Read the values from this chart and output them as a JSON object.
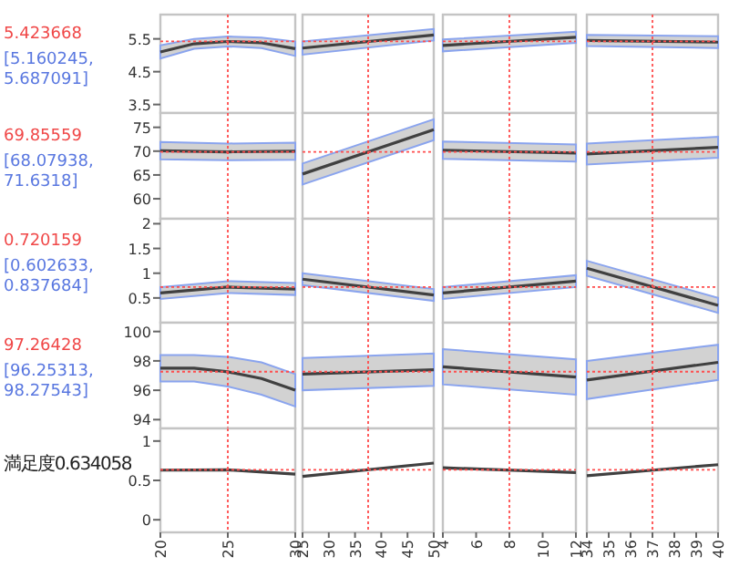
{
  "chart_data": [
    {
      "type": "line",
      "xlim": [
        20,
        30
      ],
      "ylim": [
        3.24,
        6.24
      ],
      "yticks": [
        3.5,
        4.5,
        5.5
      ],
      "tick_labels": "y",
      "annotations": [
        "5.423668",
        "[5.160245, 5.687091]"
      ],
      "ref_lines": [
        {
          "axis": "x",
          "value": 25,
          "color": "#ff4d4d",
          "line_style": "dotted"
        },
        {
          "axis": "y",
          "value": 5.423668,
          "color": "#ff4d4d",
          "line_style": "dotted"
        }
      ],
      "series": [
        {
          "color": "#404040",
          "x": [
            20,
            22.5,
            25,
            27.5,
            30
          ],
          "values": [
            5.1,
            5.35,
            5.42,
            5.38,
            5.2
          ],
          "lower": [
            4.9,
            5.2,
            5.27,
            5.22,
            4.98
          ],
          "upper": [
            5.3,
            5.5,
            5.57,
            5.54,
            5.42
          ]
        }
      ]
    },
    {
      "type": "line",
      "xlim": [
        25,
        50
      ],
      "ylim": [
        3.24,
        6.24
      ],
      "tick_labels": false,
      "ref_lines": [
        {
          "axis": "x",
          "value": 37.5,
          "color": "#ff4d4d",
          "line_style": "dotted"
        },
        {
          "axis": "y",
          "value": 5.423668,
          "color": "#ff4d4d",
          "line_style": "dotted"
        }
      ],
      "series": [
        {
          "color": "#404040",
          "x": [
            25,
            50
          ],
          "values": [
            5.22,
            5.62
          ],
          "lower": [
            5.02,
            5.45
          ],
          "upper": [
            5.42,
            5.8
          ]
        }
      ]
    },
    {
      "type": "line",
      "xlim": [
        4,
        12
      ],
      "ylim": [
        3.24,
        6.24
      ],
      "tick_labels": false,
      "ref_lines": [
        {
          "axis": "x",
          "value": 8,
          "color": "#ff4d4d",
          "line_style": "dotted"
        },
        {
          "axis": "y",
          "value": 5.423668,
          "color": "#ff4d4d",
          "line_style": "dotted"
        }
      ],
      "series": [
        {
          "color": "#404040",
          "x": [
            4,
            12
          ],
          "values": [
            5.3,
            5.55
          ],
          "lower": [
            5.12,
            5.38
          ],
          "upper": [
            5.48,
            5.72
          ]
        }
      ]
    },
    {
      "type": "line",
      "xlim": [
        34,
        40
      ],
      "ylim": [
        3.24,
        6.24
      ],
      "tick_labels": false,
      "ref_lines": [
        {
          "axis": "x",
          "value": 37,
          "color": "#ff4d4d",
          "line_style": "dotted"
        },
        {
          "axis": "y",
          "value": 5.423668,
          "color": "#ff4d4d",
          "line_style": "dotted"
        }
      ],
      "series": [
        {
          "color": "#404040",
          "x": [
            34,
            40
          ],
          "values": [
            5.45,
            5.4
          ],
          "lower": [
            5.28,
            5.22
          ],
          "upper": [
            5.62,
            5.58
          ]
        }
      ]
    },
    {
      "type": "line",
      "xlim": [
        20,
        30
      ],
      "ylim": [
        55.8,
        78
      ],
      "yticks": [
        60,
        65,
        70,
        75
      ],
      "tick_labels": "y",
      "annotations": [
        "69.85559",
        "[68.07938, 71.6318]"
      ],
      "ref_lines": [
        {
          "axis": "x",
          "value": 25,
          "color": "#ff4d4d",
          "line_style": "dotted"
        },
        {
          "axis": "y",
          "value": 69.85559,
          "color": "#ff4d4d",
          "line_style": "dotted"
        }
      ],
      "series": [
        {
          "color": "#404040",
          "x": [
            20,
            25,
            30
          ],
          "values": [
            70.1,
            69.86,
            70
          ],
          "lower": [
            68.3,
            68.1,
            68.2
          ],
          "upper": [
            71.9,
            71.6,
            71.8
          ]
        }
      ]
    },
    {
      "type": "line",
      "xlim": [
        25,
        50
      ],
      "ylim": [
        55.8,
        78
      ],
      "tick_labels": false,
      "ref_lines": [
        {
          "axis": "x",
          "value": 37.5,
          "color": "#ff4d4d",
          "line_style": "dotted"
        },
        {
          "axis": "y",
          "value": 69.85559,
          "color": "#ff4d4d",
          "line_style": "dotted"
        }
      ],
      "series": [
        {
          "color": "#404040",
          "x": [
            25,
            50
          ],
          "values": [
            65.2,
            74.5
          ],
          "lower": [
            63,
            72.3
          ],
          "upper": [
            67.4,
            76.7
          ]
        }
      ]
    },
    {
      "type": "line",
      "xlim": [
        4,
        12
      ],
      "ylim": [
        55.8,
        78
      ],
      "tick_labels": false,
      "ref_lines": [
        {
          "axis": "x",
          "value": 8,
          "color": "#ff4d4d",
          "line_style": "dotted"
        },
        {
          "axis": "y",
          "value": 69.85559,
          "color": "#ff4d4d",
          "line_style": "dotted"
        }
      ],
      "series": [
        {
          "color": "#404040",
          "x": [
            4,
            12
          ],
          "values": [
            70.2,
            69.6
          ],
          "lower": [
            68.4,
            67.8
          ],
          "upper": [
            72,
            71.4
          ]
        }
      ]
    },
    {
      "type": "line",
      "xlim": [
        34,
        40
      ],
      "ylim": [
        55.8,
        78
      ],
      "tick_labels": false,
      "ref_lines": [
        {
          "axis": "x",
          "value": 37,
          "color": "#ff4d4d",
          "line_style": "dotted"
        },
        {
          "axis": "y",
          "value": 69.85559,
          "color": "#ff4d4d",
          "line_style": "dotted"
        }
      ],
      "series": [
        {
          "color": "#404040",
          "x": [
            34,
            40
          ],
          "values": [
            69.4,
            70.8
          ],
          "lower": [
            67.2,
            68.6
          ],
          "upper": [
            71.6,
            73
          ]
        }
      ]
    },
    {
      "type": "line",
      "xlim": [
        20,
        30
      ],
      "ylim": [
        0,
        2.1
      ],
      "yticks": [
        0.5,
        1,
        1.5,
        2
      ],
      "tick_labels": "y",
      "annotations": [
        "0.720159",
        "[0.602633, 0.837684]"
      ],
      "ref_lines": [
        {
          "axis": "x",
          "value": 25,
          "color": "#ff4d4d",
          "line_style": "dotted"
        },
        {
          "axis": "y",
          "value": 0.720159,
          "color": "#ff4d4d",
          "line_style": "dotted"
        }
      ],
      "series": [
        {
          "color": "#404040",
          "x": [
            20,
            25,
            30
          ],
          "values": [
            0.6,
            0.72,
            0.68
          ],
          "lower": [
            0.48,
            0.6,
            0.56
          ],
          "upper": [
            0.72,
            0.84,
            0.8
          ]
        }
      ]
    },
    {
      "type": "line",
      "xlim": [
        25,
        50
      ],
      "ylim": [
        0,
        2.1
      ],
      "tick_labels": false,
      "ref_lines": [
        {
          "axis": "x",
          "value": 37.5,
          "color": "#ff4d4d",
          "line_style": "dotted"
        },
        {
          "axis": "y",
          "value": 0.720159,
          "color": "#ff4d4d",
          "line_style": "dotted"
        }
      ],
      "series": [
        {
          "color": "#404040",
          "x": [
            25,
            50
          ],
          "values": [
            0.88,
            0.56
          ],
          "lower": [
            0.76,
            0.44
          ],
          "upper": [
            1,
            0.68
          ]
        }
      ]
    },
    {
      "type": "line",
      "xlim": [
        4,
        12
      ],
      "ylim": [
        0,
        2.1
      ],
      "tick_labels": false,
      "ref_lines": [
        {
          "axis": "x",
          "value": 8,
          "color": "#ff4d4d",
          "line_style": "dotted"
        },
        {
          "axis": "y",
          "value": 0.720159,
          "color": "#ff4d4d",
          "line_style": "dotted"
        }
      ],
      "series": [
        {
          "color": "#404040",
          "x": [
            4,
            12
          ],
          "values": [
            0.6,
            0.84
          ],
          "lower": [
            0.48,
            0.72
          ],
          "upper": [
            0.72,
            0.96
          ]
        }
      ]
    },
    {
      "type": "line",
      "xlim": [
        34,
        40
      ],
      "ylim": [
        0,
        2.1
      ],
      "tick_labels": false,
      "ref_lines": [
        {
          "axis": "x",
          "value": 37,
          "color": "#ff4d4d",
          "line_style": "dotted"
        },
        {
          "axis": "y",
          "value": 0.720159,
          "color": "#ff4d4d",
          "line_style": "dotted"
        }
      ],
      "series": [
        {
          "color": "#404040",
          "x": [
            34,
            40
          ],
          "values": [
            1.1,
            0.35
          ],
          "lower": [
            0.95,
            0.2
          ],
          "upper": [
            1.25,
            0.5
          ]
        }
      ]
    },
    {
      "type": "line",
      "xlim": [
        20,
        30
      ],
      "ylim": [
        93.4,
        100.6
      ],
      "yticks": [
        94,
        96,
        98,
        100
      ],
      "tick_labels": "y",
      "annotations": [
        "97.26428",
        "[96.25313, 98.27543]"
      ],
      "ref_lines": [
        {
          "axis": "x",
          "value": 25,
          "color": "#ff4d4d",
          "line_style": "dotted"
        },
        {
          "axis": "y",
          "value": 97.26428,
          "color": "#ff4d4d",
          "line_style": "dotted"
        }
      ],
      "series": [
        {
          "color": "#404040",
          "x": [
            20,
            22.5,
            25,
            27.5,
            30
          ],
          "values": [
            97.5,
            97.5,
            97.26,
            96.8,
            96
          ],
          "lower": [
            96.6,
            96.6,
            96.25,
            95.7,
            94.9
          ],
          "upper": [
            98.4,
            98.4,
            98.28,
            97.9,
            97.1
          ]
        }
      ]
    },
    {
      "type": "line",
      "xlim": [
        25,
        50
      ],
      "ylim": [
        93.4,
        100.6
      ],
      "tick_labels": false,
      "ref_lines": [
        {
          "axis": "x",
          "value": 37.5,
          "color": "#ff4d4d",
          "line_style": "dotted"
        },
        {
          "axis": "y",
          "value": 97.26428,
          "color": "#ff4d4d",
          "line_style": "dotted"
        }
      ],
      "series": [
        {
          "color": "#404040",
          "x": [
            25,
            50
          ],
          "values": [
            97.1,
            97.4
          ],
          "lower": [
            96,
            96.3
          ],
          "upper": [
            98.2,
            98.5
          ]
        }
      ]
    },
    {
      "type": "line",
      "xlim": [
        4,
        12
      ],
      "ylim": [
        93.4,
        100.6
      ],
      "tick_labels": false,
      "ref_lines": [
        {
          "axis": "x",
          "value": 8,
          "color": "#ff4d4d",
          "line_style": "dotted"
        },
        {
          "axis": "y",
          "value": 97.26428,
          "color": "#ff4d4d",
          "line_style": "dotted"
        }
      ],
      "series": [
        {
          "color": "#404040",
          "x": [
            4,
            12
          ],
          "values": [
            97.6,
            96.9
          ],
          "lower": [
            96.4,
            95.7
          ],
          "upper": [
            98.8,
            98.1
          ]
        }
      ]
    },
    {
      "type": "line",
      "xlim": [
        34,
        40
      ],
      "ylim": [
        93.4,
        100.6
      ],
      "tick_labels": false,
      "ref_lines": [
        {
          "axis": "x",
          "value": 37,
          "color": "#ff4d4d",
          "line_style": "dotted"
        },
        {
          "axis": "y",
          "value": 97.26428,
          "color": "#ff4d4d",
          "line_style": "dotted"
        }
      ],
      "series": [
        {
          "color": "#404040",
          "x": [
            34,
            40
          ],
          "values": [
            96.7,
            97.9
          ],
          "lower": [
            95.4,
            96.7
          ],
          "upper": [
            98,
            99.1
          ]
        }
      ]
    },
    {
      "type": "line",
      "xlim": [
        20,
        30
      ],
      "ylim": [
        -0.16,
        1.16
      ],
      "xticks": [
        20,
        25,
        30
      ],
      "yticks": [
        0,
        0.5,
        1
      ],
      "annotations": [
        "満足度0.634058"
      ],
      "ref_lines": [
        {
          "axis": "x",
          "value": 25,
          "color": "#ff4d4d",
          "line_style": "dotted"
        },
        {
          "axis": "y",
          "value": 0.634058,
          "color": "#ff4d4d",
          "line_style": "dotted"
        }
      ],
      "series": [
        {
          "color": "#404040",
          "x": [
            20,
            25,
            30
          ],
          "values": [
            0.63,
            0.634,
            0.58
          ]
        }
      ]
    },
    {
      "type": "line",
      "xlim": [
        25,
        50
      ],
      "ylim": [
        -0.16,
        1.16
      ],
      "xticks": [
        25,
        30,
        35,
        40,
        45,
        50
      ],
      "tick_labels": "x",
      "ref_lines": [
        {
          "axis": "x",
          "value": 37.5,
          "color": "#ff4d4d",
          "line_style": "dotted"
        },
        {
          "axis": "y",
          "value": 0.634058,
          "color": "#ff4d4d",
          "line_style": "dotted"
        }
      ],
      "series": [
        {
          "color": "#404040",
          "x": [
            25,
            50
          ],
          "values": [
            0.55,
            0.72
          ]
        }
      ]
    },
    {
      "type": "line",
      "xlim": [
        4,
        12
      ],
      "ylim": [
        -0.16,
        1.16
      ],
      "xticks": [
        4,
        6,
        8,
        10,
        12
      ],
      "tick_labels": "x",
      "ref_lines": [
        {
          "axis": "x",
          "value": 8,
          "color": "#ff4d4d",
          "line_style": "dotted"
        },
        {
          "axis": "y",
          "value": 0.634058,
          "color": "#ff4d4d",
          "line_style": "dotted"
        }
      ],
      "series": [
        {
          "color": "#404040",
          "x": [
            4,
            12
          ],
          "values": [
            0.66,
            0.6
          ]
        }
      ]
    },
    {
      "type": "line",
      "xlim": [
        34,
        40
      ],
      "ylim": [
        -0.16,
        1.16
      ],
      "xticks": [
        34,
        35,
        36,
        37,
        38,
        39,
        40
      ],
      "tick_labels": "x",
      "ref_lines": [
        {
          "axis": "x",
          "value": 37,
          "color": "#ff4d4d",
          "line_style": "dotted"
        },
        {
          "axis": "y",
          "value": 0.634058,
          "color": "#ff4d4d",
          "line_style": "dotted"
        }
      ],
      "series": [
        {
          "color": "#404040",
          "x": [
            34,
            40
          ],
          "values": [
            0.56,
            0.7
          ]
        }
      ]
    }
  ]
}
